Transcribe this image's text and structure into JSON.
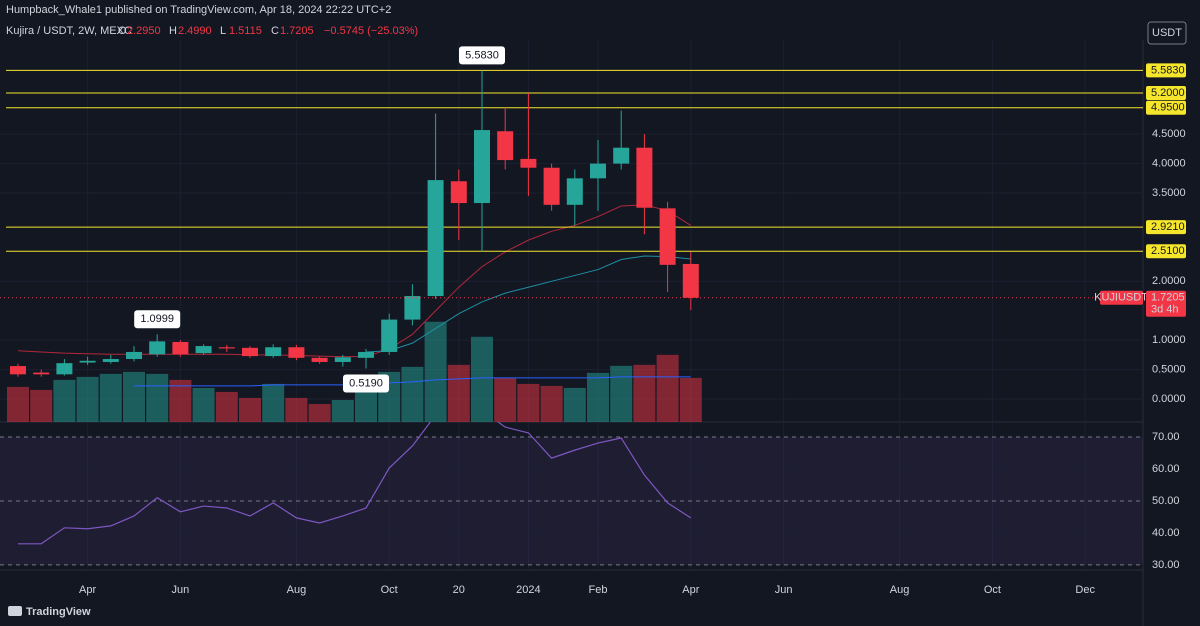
{
  "header": {
    "publisher": "Humpback_Whale1 published on TradingView.com, Apr 18, 2024 22:22 UTC+2",
    "footer": "TradingView"
  },
  "chart_data": {
    "type": "candlestick",
    "symbol": "Kujira / USDT, 2W, MEXC",
    "ohlc_legend": {
      "o": "O",
      "o_value": "2.2950",
      "h": "H",
      "h_value": "2.4990",
      "l": "L",
      "l_value": "1.5115",
      "c": "C",
      "c_value": "1.7205",
      "change": "−0.5745 (−25.03%)"
    },
    "currency_button": "USDT",
    "categories": [
      null,
      null,
      null,
      "Apr",
      null,
      null,
      null,
      "Jun",
      null,
      null,
      null,
      null,
      "Aug",
      null,
      null,
      null,
      "Oct",
      null,
      null,
      "20",
      null,
      null,
      "2024",
      null,
      null,
      "Feb",
      null,
      null,
      null,
      "Apr",
      null,
      null,
      null,
      "Jun",
      null,
      null,
      null,
      null,
      "Aug",
      null,
      null,
      null,
      "Oct",
      null,
      null,
      null,
      "Dec",
      null,
      null
    ],
    "open": [
      0.56,
      0.45,
      0.42,
      0.62,
      0.63,
      0.68,
      0.76,
      0.97,
      0.78,
      0.88,
      0.87,
      0.73,
      0.88,
      0.7,
      0.63,
      0.7,
      0.8,
      1.35,
      1.75,
      3.7,
      3.33,
      4.55,
      4.08,
      3.93,
      3.3,
      3.75,
      4.0,
      4.27,
      3.24,
      2.295,
      null,
      null,
      null,
      null,
      null,
      null,
      null,
      null,
      null,
      null,
      null,
      null,
      null,
      null,
      null,
      null,
      null,
      null,
      null
    ],
    "high": [
      0.6,
      0.5,
      0.68,
      0.72,
      0.75,
      0.9,
      1.0999,
      1.0,
      0.93,
      0.92,
      0.9,
      0.93,
      0.92,
      0.72,
      0.75,
      0.85,
      1.45,
      1.95,
      4.85,
      3.9,
      5.583,
      4.95,
      5.2,
      4.0,
      3.9,
      4.4,
      4.9,
      4.5,
      3.35,
      2.499,
      null,
      null,
      null,
      null,
      null,
      null,
      null,
      null,
      null,
      null,
      null,
      null,
      null,
      null,
      null,
      null,
      null,
      null,
      null
    ],
    "low": [
      0.38,
      0.38,
      0.4,
      0.58,
      0.6,
      0.64,
      0.72,
      0.72,
      0.75,
      0.8,
      0.7,
      0.7,
      0.66,
      0.6,
      0.55,
      0.519,
      0.75,
      1.25,
      1.7,
      2.7,
      2.5,
      3.9,
      3.45,
      3.2,
      2.95,
      3.2,
      3.9,
      2.8,
      1.82,
      1.5115,
      null,
      null,
      null,
      null,
      null,
      null,
      null,
      null,
      null,
      null,
      null,
      null,
      null,
      null,
      null,
      null,
      null,
      null,
      null
    ],
    "close": [
      0.42,
      0.42,
      0.61,
      0.65,
      0.68,
      0.8,
      0.98,
      0.76,
      0.9,
      0.86,
      0.73,
      0.88,
      0.7,
      0.63,
      0.71,
      0.8,
      1.35,
      1.75,
      3.72,
      3.33,
      4.57,
      4.06,
      3.93,
      3.3,
      3.75,
      4.0,
      4.27,
      3.25,
      2.28,
      1.7205,
      null,
      null,
      null,
      null,
      null,
      null,
      null,
      null,
      null,
      null,
      null,
      null,
      null,
      null,
      null,
      null,
      null,
      null,
      null
    ],
    "volume": [
      35,
      32,
      42,
      45,
      48,
      50,
      48,
      42,
      34,
      30,
      24,
      38,
      24,
      18,
      22,
      40,
      50,
      55,
      100,
      57,
      85,
      44,
      38,
      36,
      34,
      49,
      56,
      57,
      67,
      44,
      null,
      null,
      null,
      null,
      null,
      null,
      null,
      null,
      null,
      null,
      null,
      null,
      null,
      null,
      null,
      null,
      null,
      null,
      null
    ],
    "volume_ma": [
      null,
      null,
      null,
      null,
      null,
      36,
      36,
      36,
      36,
      36,
      36,
      37,
      37,
      37,
      37,
      38,
      39,
      40,
      42,
      43,
      44,
      44,
      44,
      44,
      44,
      44,
      45,
      45,
      45,
      45,
      null,
      null,
      null,
      null,
      null,
      null,
      null,
      null,
      null,
      null,
      null,
      null,
      null,
      null,
      null,
      null,
      null,
      null,
      null
    ],
    "volume_lim": [
      0,
      381
    ],
    "ma_series": [
      {
        "color": "#b2283a",
        "values": [
          0.82,
          0.8,
          0.78,
          0.77,
          0.76,
          0.76,
          0.76,
          0.76,
          0.76,
          0.76,
          0.75,
          0.75,
          0.74,
          0.73,
          0.72,
          0.72,
          0.85,
          1.1,
          1.5,
          1.9,
          2.25,
          2.5,
          2.7,
          2.85,
          2.95,
          3.1,
          3.28,
          3.3,
          3.2,
          2.95,
          null,
          null,
          null,
          null,
          null,
          null,
          null,
          null,
          null,
          null,
          null,
          null,
          null,
          null,
          null,
          null,
          null,
          null,
          null
        ]
      },
      {
        "color": "#1f8fa3",
        "values": [
          null,
          null,
          null,
          null,
          null,
          null,
          null,
          null,
          null,
          null,
          null,
          null,
          null,
          null,
          null,
          0.8,
          0.82,
          0.95,
          1.2,
          1.45,
          1.65,
          1.8,
          1.9,
          2.0,
          2.1,
          2.2,
          2.37,
          2.43,
          2.42,
          2.38,
          null,
          null,
          null,
          null,
          null,
          null,
          null,
          null,
          null,
          null,
          null,
          null,
          null,
          null,
          null,
          null,
          null,
          null,
          null
        ]
      }
    ],
    "ylim": [
      -0.39,
      6.1
    ],
    "yticks": [
      {
        "value": 0,
        "label": "0.0000"
      },
      {
        "value": 0.5,
        "label": "0.5000"
      },
      {
        "value": 1,
        "label": "1.0000"
      },
      {
        "value": 2,
        "label": "2.0000"
      },
      {
        "value": 3.5,
        "label": "3.5000"
      },
      {
        "value": 4,
        "label": "4.0000"
      },
      {
        "value": 4.5,
        "label": "4.5000"
      }
    ],
    "levels": [
      {
        "value": 5.583,
        "label": "5.5830"
      },
      {
        "value": 5.2,
        "label": "5.2000"
      },
      {
        "value": 4.95,
        "label": "4.9500"
      },
      {
        "value": 2.921,
        "label": "2.9210"
      },
      {
        "value": 2.51,
        "label": "2.5100"
      }
    ],
    "annotations": [
      {
        "label": "5.5830",
        "candle": 20,
        "value": 5.583,
        "side": "above"
      },
      {
        "label": "1.0999",
        "candle": 6,
        "value": 1.0999,
        "side": "above"
      },
      {
        "label": "0.5190",
        "candle": 15,
        "value": 0.519,
        "side": "below"
      }
    ],
    "price_tag": {
      "symbol": "KUJIUSDT",
      "price": "1.7205",
      "countdown": "3d 4h"
    },
    "up_color": "#26a69a",
    "down_color": "#f23645",
    "level_color": "#f5e52b",
    "rsi": {
      "color": "#7e57c2",
      "values": [
        36.6,
        36.6,
        41.6,
        41.3,
        42.2,
        45.3,
        51,
        46.6,
        48.4,
        47.8,
        45.3,
        49.4,
        44.7,
        43.1,
        45.3,
        47.8,
        60.3,
        67.2,
        76.9,
        80,
        78.4,
        73.1,
        71.3,
        63.4,
        65.9,
        68.1,
        69.7,
        58.1,
        49.4,
        44.7,
        null,
        null,
        null,
        null,
        null,
        null,
        null,
        null,
        null,
        null,
        null,
        null,
        null,
        null,
        null,
        null,
        null,
        null,
        null
      ],
      "ylim": [
        28.4,
        74.7
      ],
      "yticks": [
        {
          "value": 30,
          "label": "30.00"
        },
        {
          "value": 40,
          "label": "40.00"
        },
        {
          "value": 50,
          "label": "50.00"
        },
        {
          "value": 60,
          "label": "60.00"
        },
        {
          "value": 70,
          "label": "70.00"
        }
      ]
    }
  }
}
